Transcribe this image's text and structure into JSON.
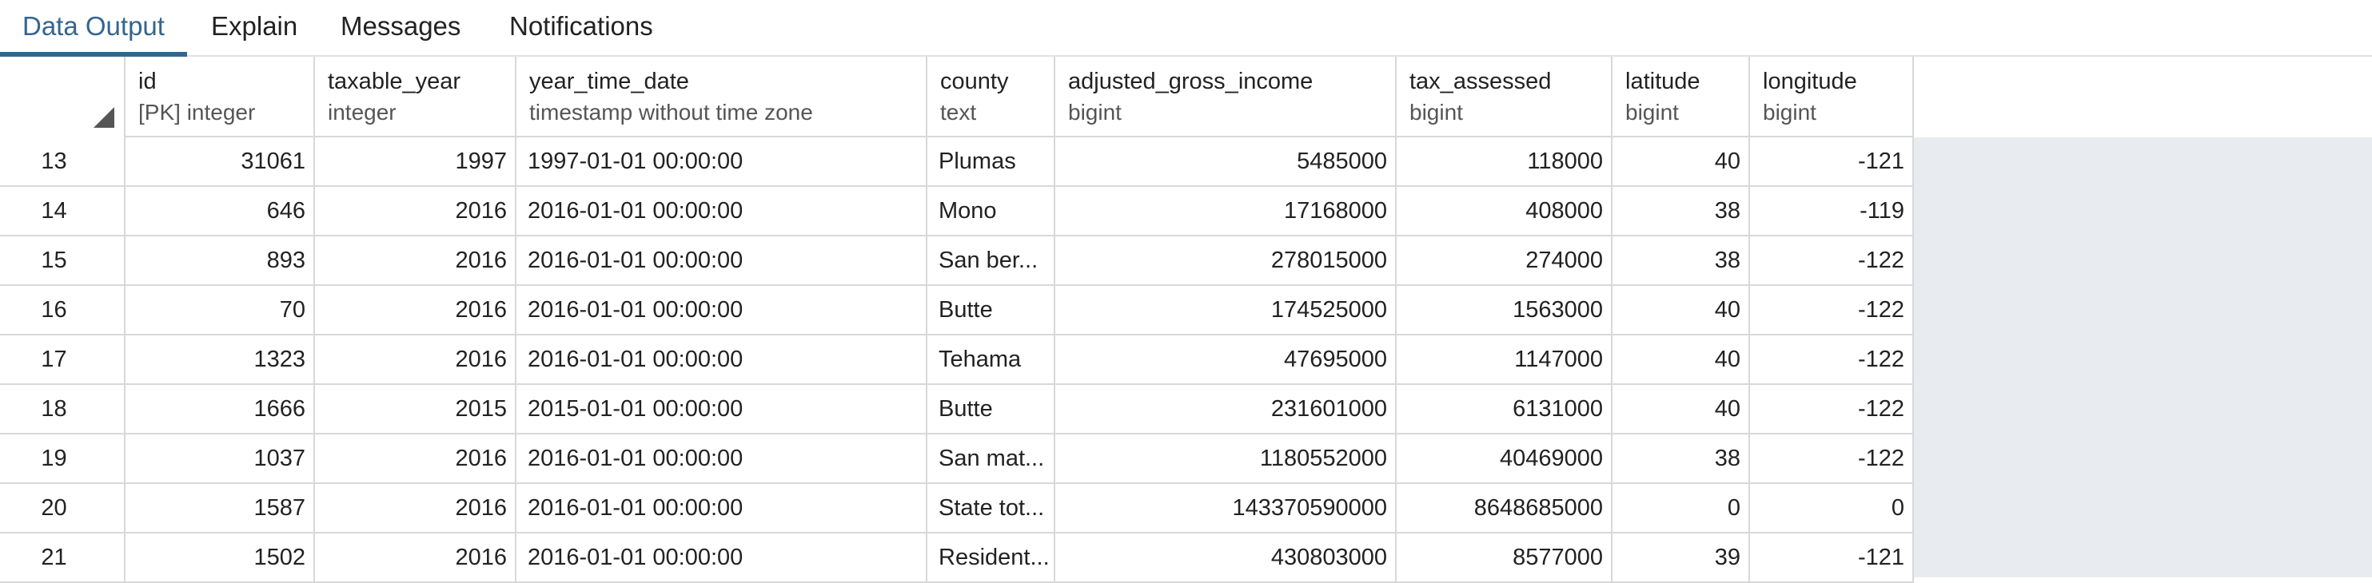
{
  "tabs": [
    {
      "label": "Data Output",
      "active": true
    },
    {
      "label": "Explain",
      "active": false
    },
    {
      "label": "Messages",
      "active": false
    },
    {
      "label": "Notifications",
      "active": false
    }
  ],
  "columns": [
    {
      "name": "id",
      "type": "[PK] integer",
      "align": "num"
    },
    {
      "name": "taxable_year",
      "type": "integer",
      "align": "num"
    },
    {
      "name": "year_time_date",
      "type": "timestamp without time zone",
      "align": "txt"
    },
    {
      "name": "county",
      "type": "text",
      "align": "txt"
    },
    {
      "name": "adjusted_gross_income",
      "type": "bigint",
      "align": "num"
    },
    {
      "name": "tax_assessed",
      "type": "bigint",
      "align": "num"
    },
    {
      "name": "latitude",
      "type": "bigint",
      "align": "num"
    },
    {
      "name": "longitude",
      "type": "bigint",
      "align": "num"
    }
  ],
  "rows": [
    {
      "row": "13",
      "cells": [
        "31061",
        "1997",
        "1997-01-01 00:00:00",
        "Plumas",
        "5485000",
        "118000",
        "40",
        "-121"
      ]
    },
    {
      "row": "14",
      "cells": [
        "646",
        "2016",
        "2016-01-01 00:00:00",
        "Mono",
        "17168000",
        "408000",
        "38",
        "-119"
      ]
    },
    {
      "row": "15",
      "cells": [
        "893",
        "2016",
        "2016-01-01 00:00:00",
        "San ber...",
        "278015000",
        "274000",
        "38",
        "-122"
      ]
    },
    {
      "row": "16",
      "cells": [
        "70",
        "2016",
        "2016-01-01 00:00:00",
        "Butte",
        "174525000",
        "1563000",
        "40",
        "-122"
      ]
    },
    {
      "row": "17",
      "cells": [
        "1323",
        "2016",
        "2016-01-01 00:00:00",
        "Tehama",
        "47695000",
        "1147000",
        "40",
        "-122"
      ]
    },
    {
      "row": "18",
      "cells": [
        "1666",
        "2015",
        "2015-01-01 00:00:00",
        "Butte",
        "231601000",
        "6131000",
        "40",
        "-122"
      ]
    },
    {
      "row": "19",
      "cells": [
        "1037",
        "2016",
        "2016-01-01 00:00:00",
        "San mat...",
        "1180552000",
        "40469000",
        "38",
        "-122"
      ]
    },
    {
      "row": "20",
      "cells": [
        "1587",
        "2016",
        "2016-01-01 00:00:00",
        "State tot...",
        "143370590000",
        "8648685000",
        "0",
        "0"
      ]
    },
    {
      "row": "21",
      "cells": [
        "1502",
        "2016",
        "2016-01-01 00:00:00",
        "Resident...",
        "430803000",
        "8577000",
        "39",
        "-121"
      ]
    }
  ]
}
